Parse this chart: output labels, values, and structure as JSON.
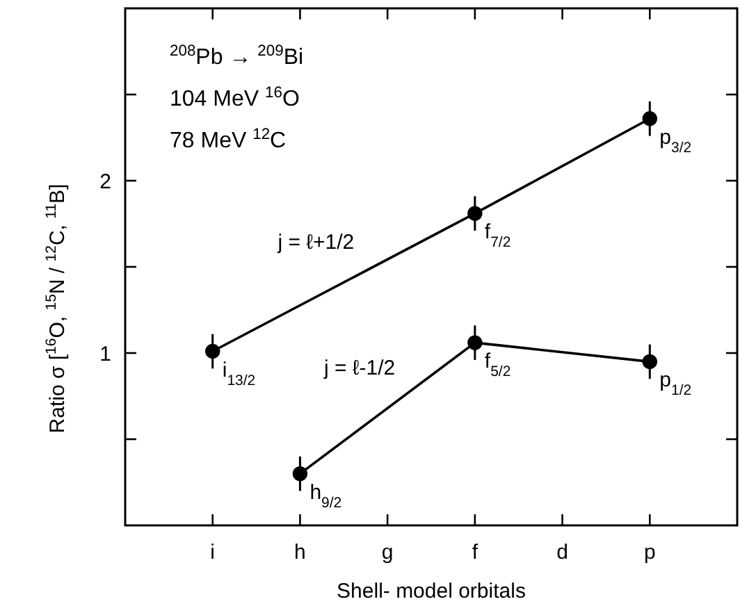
{
  "chart_data": {
    "type": "line",
    "xlabel": "Shell- model orbitals",
    "ylabel": "Ratio σ [$^{16}$O, $^{15}$N / $^{12}$C, $^{11}$B]",
    "categories": [
      "i",
      "h",
      "g",
      "f",
      "d",
      "p"
    ],
    "ylim": [
      0,
      3
    ],
    "yticks": [
      {
        "value": 0.5,
        "label": null
      },
      1,
      {
        "value": 1.5,
        "label": null
      },
      2,
      {
        "value": 2.5,
        "label": null
      }
    ],
    "marker": "circle",
    "line_style": "solid",
    "series": [
      {
        "name": "j = ℓ+1/2",
        "color": "#000000",
        "values": [
          1.01,
          null,
          null,
          1.81,
          null,
          2.36
        ],
        "errors": [
          0.1,
          null,
          null,
          0.1,
          null,
          0.1
        ]
      },
      {
        "name": "j = ℓ-1/2",
        "color": "#000000",
        "values": [
          null,
          0.3,
          null,
          1.06,
          null,
          0.95
        ],
        "errors": [
          null,
          0.1,
          null,
          0.1,
          null,
          0.1
        ]
      }
    ],
    "annotations": [
      "$^{208}$Pb → $^{209}$Bi",
      "104 MeV $^{16}$O",
      "78 MeV $^{12}$C",
      {
        "text": "i$_{13/2}$",
        "x": "i",
        "y": 1.01
      },
      {
        "text": "f$_{7/2}$",
        "x": "f",
        "y": 1.81
      },
      {
        "text": "p$_{3/2}$",
        "x": "p",
        "y": 2.36
      },
      {
        "text": "h$_{9/2}$",
        "x": "h",
        "y": 0.3
      },
      {
        "text": "f$_{5/2}$",
        "x": "f",
        "y": 1.06
      },
      {
        "text": "p$_{1/2}$",
        "x": "p",
        "y": 0.95
      }
    ]
  }
}
